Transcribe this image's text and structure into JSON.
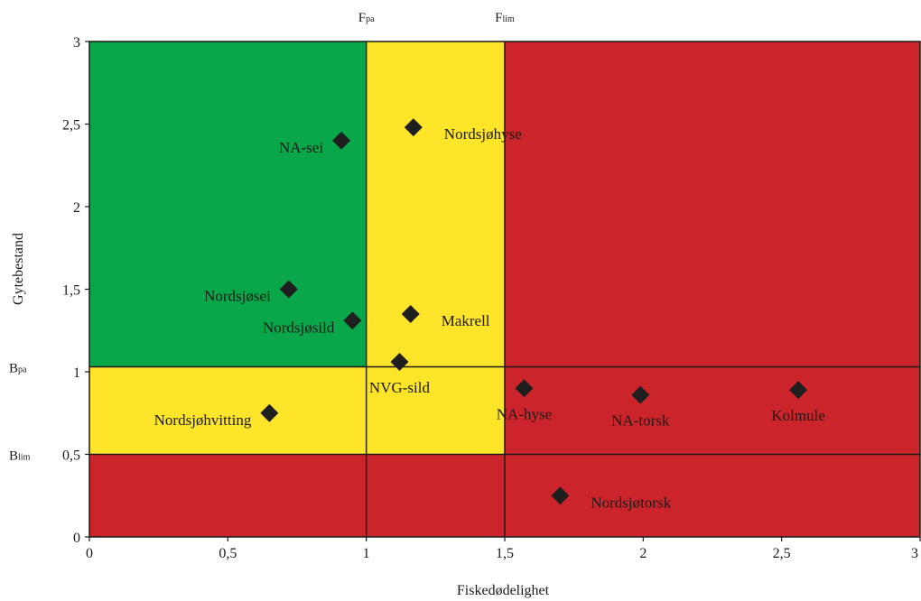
{
  "chart_data": {
    "type": "scatter",
    "xlabel": "Fiskedødelighet",
    "ylabel": "Gytebestand",
    "xlim": [
      0,
      3
    ],
    "ylim": [
      0,
      3
    ],
    "x_ticks": [
      "0",
      "0,5",
      "1",
      "1,5",
      "2",
      "2,5",
      "3"
    ],
    "y_ticks": [
      "0",
      "0,5",
      "1",
      "1,5",
      "2",
      "2,5",
      "3"
    ],
    "x_tick_values": [
      0,
      0.5,
      1,
      1.5,
      2,
      2.5,
      3
    ],
    "y_tick_values": [
      0,
      0.5,
      1,
      1.5,
      2,
      2.5,
      3
    ],
    "grid": false,
    "reference_lines": {
      "vertical": [
        {
          "x": 1.0,
          "label_main": "F",
          "label_sub": "pa"
        },
        {
          "x": 1.5,
          "label_main": "F",
          "label_sub": "lim"
        }
      ],
      "horizontal": [
        {
          "y": 1.03,
          "label_main": "B",
          "label_sub": "pa"
        },
        {
          "y": 0.5,
          "label_main": "B",
          "label_sub": "lim"
        }
      ]
    },
    "zones": [
      {
        "x": [
          0,
          1
        ],
        "y": [
          1.03,
          3
        ],
        "color": "#0aa64a"
      },
      {
        "x": [
          1,
          1.5
        ],
        "y": [
          1.03,
          3
        ],
        "color": "#ffe52a"
      },
      {
        "x": [
          1.5,
          3
        ],
        "y": [
          1.03,
          3
        ],
        "color": "#cc242b"
      },
      {
        "x": [
          0,
          1.5
        ],
        "y": [
          0.5,
          1.03
        ],
        "color": "#ffe52a"
      },
      {
        "x": [
          1.5,
          3
        ],
        "y": [
          0.5,
          1.03
        ],
        "color": "#cc242b"
      },
      {
        "x": [
          0,
          3
        ],
        "y": [
          0,
          0.5
        ],
        "color": "#cc242b"
      }
    ],
    "marker_color": "#1f1f1f",
    "points": [
      {
        "name": "NA-sei",
        "x": 0.91,
        "y": 2.4,
        "label_side": "left"
      },
      {
        "name": "Nordsjøhyse",
        "x": 1.17,
        "y": 2.48,
        "label_side": "right"
      },
      {
        "name": "Nordsjøsei",
        "x": 0.72,
        "y": 1.5,
        "label_side": "left"
      },
      {
        "name": "Nordsjøsild",
        "x": 0.95,
        "y": 1.31,
        "label_side": "left"
      },
      {
        "name": "Makrell",
        "x": 1.16,
        "y": 1.35,
        "label_side": "right"
      },
      {
        "name": "NVG-sild",
        "x": 1.12,
        "y": 1.06,
        "label_side": "below"
      },
      {
        "name": "Nordsjøhvitting",
        "x": 0.65,
        "y": 0.75,
        "label_side": "left"
      },
      {
        "name": "NA-hyse",
        "x": 1.57,
        "y": 0.9,
        "label_side": "below"
      },
      {
        "name": "NA-torsk",
        "x": 1.99,
        "y": 0.86,
        "label_side": "below"
      },
      {
        "name": "Kolmule",
        "x": 2.56,
        "y": 0.89,
        "label_side": "below"
      },
      {
        "name": "Nordsjøtorsk",
        "x": 1.7,
        "y": 0.25,
        "label_side": "right"
      }
    ]
  }
}
